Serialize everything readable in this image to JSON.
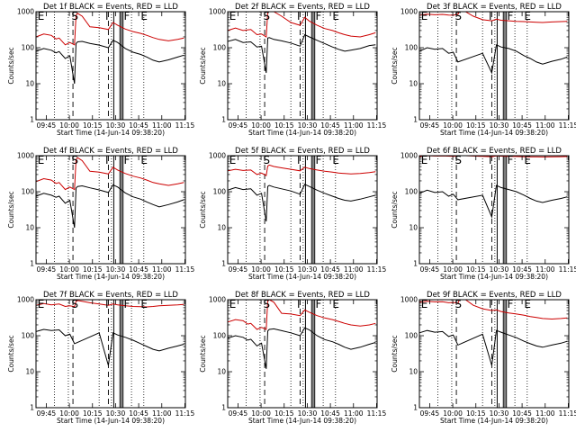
{
  "colors": {
    "events": "#000000",
    "lld": "#cc0000",
    "axes": "#000000",
    "background": "#ffffff"
  },
  "common": {
    "ylabel": "Counts/sec",
    "xlabel": "Start Time (14-Jun-14 09:38:20)",
    "xticks": [
      "09:45",
      "10:00",
      "10:15",
      "10:30",
      "10:45",
      "11:00",
      "11:15"
    ],
    "yticks": [
      "1",
      "10",
      "100",
      "1000"
    ],
    "region_labels": [
      "E",
      "S",
      "I",
      "F",
      "E"
    ]
  },
  "chart_data": [
    {
      "type": "line",
      "title": "Det 1f BLACK = Events, RED = LLD",
      "y_scale": "log",
      "ylim": [
        1,
        1000
      ],
      "xlim_minutes_from_start": [
        0,
        97
      ],
      "series": [
        {
          "name": "Events",
          "color": "#000000",
          "x": [
            0,
            5,
            10,
            13,
            15,
            19,
            22,
            25,
            26,
            27,
            30,
            35,
            41,
            47,
            50,
            53,
            58,
            63,
            68,
            72,
            76,
            80,
            86,
            92,
            96
          ],
          "y": [
            80,
            95,
            85,
            72,
            78,
            50,
            60,
            10,
            130,
            145,
            150,
            132,
            118,
            100,
            160,
            140,
            95,
            75,
            65,
            55,
            45,
            40,
            46,
            55,
            62
          ]
        },
        {
          "name": "LLD",
          "color": "#cc0000",
          "x": [
            0,
            5,
            10,
            13,
            15,
            19,
            22,
            25,
            26,
            27,
            30,
            35,
            41,
            47,
            50,
            53,
            58,
            63,
            68,
            72,
            76,
            80,
            86,
            92,
            96
          ],
          "y": [
            200,
            240,
            220,
            175,
            185,
            120,
            140,
            120,
            800,
            900,
            750,
            380,
            360,
            320,
            500,
            420,
            330,
            280,
            250,
            220,
            190,
            170,
            155,
            170,
            185
          ]
        }
      ]
    },
    {
      "type": "line",
      "title": "Det 2f BLACK = Events, RED = LLD",
      "y_scale": "log",
      "ylim": [
        1,
        1000
      ],
      "xlim_minutes_from_start": [
        0,
        97
      ],
      "series": [
        {
          "name": "Events",
          "color": "#000000",
          "x": [
            0,
            5,
            10,
            15,
            19,
            22,
            25,
            26,
            27,
            30,
            35,
            41,
            47,
            50,
            53,
            58,
            63,
            68,
            72,
            76,
            80,
            86,
            92,
            96
          ],
          "y": [
            150,
            170,
            140,
            145,
            105,
            110,
            20,
            185,
            190,
            170,
            155,
            135,
            110,
            230,
            200,
            160,
            130,
            105,
            90,
            80,
            85,
            95,
            115,
            120
          ]
        },
        {
          "name": "LLD",
          "color": "#cc0000",
          "x": [
            0,
            5,
            10,
            15,
            19,
            22,
            25,
            26,
            27,
            30,
            35,
            41,
            47,
            50,
            53,
            58,
            63,
            68,
            72,
            76,
            80,
            86,
            92,
            96
          ],
          "y": [
            300,
            350,
            300,
            320,
            230,
            240,
            200,
            1000,
            1000,
            1000,
            750,
            500,
            420,
            700,
            550,
            420,
            340,
            300,
            260,
            230,
            210,
            200,
            230,
            260
          ]
        }
      ]
    },
    {
      "type": "line",
      "title": "Det 3f BLACK = Events, RED = LLD",
      "y_scale": "log",
      "ylim": [
        1,
        1000
      ],
      "xlim_minutes_from_start": [
        0,
        97
      ],
      "series": [
        {
          "name": "Events",
          "color": "#000000",
          "x": [
            0,
            5,
            10,
            15,
            19,
            22,
            25,
            41,
            47,
            50,
            53,
            58,
            63,
            68,
            72,
            76,
            80,
            86,
            92,
            96
          ],
          "y": [
            80,
            100,
            90,
            95,
            70,
            75,
            40,
            70,
            20,
            120,
            105,
            95,
            80,
            60,
            50,
            40,
            35,
            42,
            48,
            55
          ]
        },
        {
          "name": "LLD",
          "color": "#cc0000",
          "x": [
            0,
            5,
            10,
            15,
            19,
            22,
            25,
            26,
            27,
            30,
            35,
            41,
            47,
            50,
            53,
            58,
            63,
            68,
            72,
            76,
            80,
            86,
            92,
            96
          ],
          "y": [
            800,
            850,
            820,
            840,
            810,
            800,
            850,
            1000,
            1000,
            1000,
            750,
            600,
            560,
            620,
            580,
            560,
            540,
            530,
            520,
            510,
            500,
            520,
            530,
            540
          ]
        }
      ]
    },
    {
      "type": "line",
      "title": "Det 4f BLACK = Events, RED = LLD",
      "y_scale": "log",
      "ylim": [
        1,
        1000
      ],
      "xlim_minutes_from_start": [
        0,
        97
      ],
      "series": [
        {
          "name": "Events",
          "color": "#000000",
          "x": [
            0,
            5,
            10,
            13,
            15,
            19,
            22,
            25,
            26,
            27,
            30,
            35,
            41,
            47,
            50,
            53,
            58,
            63,
            68,
            72,
            76,
            80,
            86,
            92,
            96
          ],
          "y": [
            75,
            90,
            80,
            70,
            75,
            48,
            58,
            10,
            125,
            140,
            145,
            128,
            112,
            95,
            155,
            135,
            92,
            72,
            62,
            52,
            44,
            38,
            44,
            52,
            60
          ]
        },
        {
          "name": "LLD",
          "color": "#cc0000",
          "x": [
            0,
            5,
            10,
            13,
            15,
            19,
            22,
            25,
            26,
            27,
            30,
            35,
            41,
            47,
            50,
            53,
            58,
            63,
            68,
            72,
            76,
            80,
            86,
            92,
            96
          ],
          "y": [
            190,
            230,
            210,
            170,
            180,
            115,
            135,
            115,
            780,
            880,
            730,
            370,
            350,
            310,
            480,
            400,
            320,
            270,
            240,
            210,
            180,
            165,
            150,
            165,
            180
          ]
        }
      ]
    },
    {
      "type": "line",
      "title": "Det 5f BLACK = Events, RED = LLD",
      "y_scale": "log",
      "ylim": [
        1,
        1000
      ],
      "xlim_minutes_from_start": [
        0,
        97
      ],
      "series": [
        {
          "name": "Events",
          "color": "#000000",
          "x": [
            0,
            5,
            10,
            15,
            19,
            22,
            25,
            26,
            27,
            30,
            35,
            41,
            47,
            50,
            53,
            58,
            63,
            68,
            72,
            76,
            80,
            86,
            92,
            96
          ],
          "y": [
            110,
            130,
            115,
            120,
            80,
            90,
            15,
            140,
            150,
            135,
            120,
            105,
            85,
            160,
            140,
            110,
            90,
            75,
            65,
            58,
            55,
            62,
            72,
            80
          ]
        },
        {
          "name": "LLD",
          "color": "#cc0000",
          "x": [
            0,
            5,
            10,
            15,
            19,
            22,
            25,
            26,
            27,
            30,
            35,
            41,
            47,
            50,
            53,
            58,
            63,
            68,
            72,
            76,
            80,
            86,
            92,
            96
          ],
          "y": [
            380,
            420,
            390,
            400,
            300,
            330,
            280,
            520,
            550,
            500,
            460,
            420,
            380,
            480,
            440,
            400,
            370,
            350,
            330,
            320,
            310,
            320,
            340,
            360
          ]
        }
      ]
    },
    {
      "type": "line",
      "title": "Det 6f BLACK = Events, RED = LLD",
      "y_scale": "log",
      "ylim": [
        1,
        1000
      ],
      "xlim_minutes_from_start": [
        0,
        97
      ],
      "series": [
        {
          "name": "Events",
          "color": "#000000",
          "x": [
            0,
            5,
            10,
            15,
            19,
            22,
            25,
            41,
            47,
            50,
            53,
            58,
            63,
            68,
            72,
            76,
            80,
            86,
            92,
            96
          ],
          "y": [
            90,
            110,
            95,
            100,
            75,
            85,
            60,
            80,
            20,
            150,
            130,
            115,
            100,
            80,
            65,
            55,
            50,
            58,
            65,
            72
          ]
        },
        {
          "name": "LLD",
          "color": "#cc0000",
          "x": [
            0,
            5,
            10,
            15,
            19,
            22,
            25,
            26,
            27,
            30,
            35,
            41,
            47,
            50,
            53,
            58,
            63,
            68,
            72,
            76,
            80,
            86,
            92,
            96
          ],
          "y": [
            950,
            1000,
            980,
            990,
            970,
            960,
            990,
            1000,
            1000,
            1000,
            980,
            960,
            940,
            990,
            970,
            960,
            950,
            940,
            930,
            930,
            920,
            930,
            940,
            950
          ]
        }
      ]
    },
    {
      "type": "line",
      "title": "Det 7f BLACK = Events, RED = LLD",
      "y_scale": "log",
      "ylim": [
        1,
        1000
      ],
      "xlim_minutes_from_start": [
        0,
        97
      ],
      "series": [
        {
          "name": "Events",
          "color": "#000000",
          "x": [
            0,
            5,
            10,
            15,
            19,
            22,
            25,
            41,
            47,
            50,
            53,
            58,
            63,
            68,
            72,
            76,
            80,
            86,
            92,
            96
          ],
          "y": [
            130,
            150,
            140,
            145,
            100,
            110,
            60,
            120,
            15,
            120,
            105,
            90,
            75,
            60,
            50,
            42,
            38,
            45,
            52,
            58
          ]
        },
        {
          "name": "LLD",
          "color": "#cc0000",
          "x": [
            0,
            5,
            10,
            15,
            19,
            22,
            25,
            26,
            27,
            30,
            35,
            41,
            47,
            50,
            53,
            58,
            63,
            68,
            72,
            76,
            80,
            86,
            92,
            96
          ],
          "y": [
            700,
            780,
            720,
            760,
            650,
            680,
            640,
            900,
            950,
            900,
            820,
            760,
            700,
            760,
            720,
            680,
            650,
            640,
            630,
            650,
            680,
            700,
            720,
            740
          ]
        }
      ]
    },
    {
      "type": "line",
      "title": "Det 8f BLACK = Events, RED = LLD",
      "y_scale": "log",
      "ylim": [
        1,
        1000
      ],
      "xlim_minutes_from_start": [
        0,
        97
      ],
      "series": [
        {
          "name": "Events",
          "color": "#000000",
          "x": [
            0,
            5,
            10,
            13,
            15,
            19,
            22,
            25,
            26,
            27,
            30,
            35,
            41,
            47,
            50,
            53,
            58,
            63,
            68,
            72,
            76,
            80,
            86,
            92,
            96
          ],
          "y": [
            85,
            100,
            90,
            75,
            80,
            52,
            62,
            12,
            135,
            150,
            155,
            138,
            120,
            100,
            165,
            145,
            100,
            78,
            68,
            58,
            48,
            42,
            48,
            58,
            65
          ]
        },
        {
          "name": "LLD",
          "color": "#cc0000",
          "x": [
            0,
            5,
            10,
            13,
            15,
            19,
            22,
            25,
            26,
            27,
            30,
            35,
            41,
            47,
            50,
            53,
            58,
            63,
            68,
            72,
            76,
            80,
            86,
            92,
            96
          ],
          "y": [
            240,
            280,
            260,
            210,
            220,
            150,
            170,
            150,
            950,
            1000,
            850,
            420,
            400,
            360,
            520,
            450,
            360,
            310,
            280,
            250,
            220,
            200,
            185,
            200,
            220
          ]
        }
      ]
    },
    {
      "type": "line",
      "title": "Det 9f BLACK = Events, RED = LLD",
      "y_scale": "log",
      "ylim": [
        1,
        1000
      ],
      "xlim_minutes_from_start": [
        0,
        97
      ],
      "series": [
        {
          "name": "Events",
          "color": "#000000",
          "x": [
            0,
            5,
            10,
            15,
            19,
            22,
            25,
            41,
            47,
            50,
            53,
            58,
            63,
            68,
            72,
            76,
            80,
            86,
            92,
            96
          ],
          "y": [
            120,
            140,
            125,
            130,
            95,
            105,
            55,
            110,
            15,
            140,
            125,
            105,
            88,
            70,
            60,
            52,
            48,
            55,
            62,
            70
          ]
        },
        {
          "name": "LLD",
          "color": "#cc0000",
          "x": [
            0,
            5,
            10,
            15,
            19,
            22,
            25,
            26,
            27,
            30,
            35,
            41,
            47,
            50,
            53,
            58,
            63,
            68,
            72,
            76,
            80,
            86,
            92,
            96
          ],
          "y": [
            850,
            900,
            870,
            880,
            820,
            840,
            800,
            1000,
            1000,
            1000,
            700,
            560,
            500,
            520,
            470,
            430,
            400,
            370,
            340,
            320,
            300,
            290,
            300,
            310
          ]
        }
      ]
    }
  ]
}
